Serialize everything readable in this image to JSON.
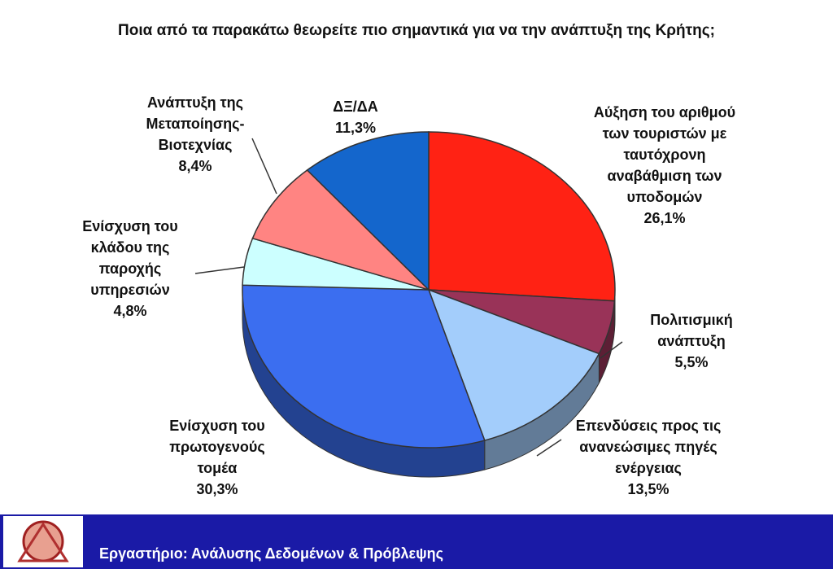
{
  "chart_data": {
    "type": "pie",
    "title": "Ποια από τα παρακάτω θεωρείτε πιο σημαντικά για να την ανάπτυξη της Κρήτης;",
    "categories": [
      "Αύξηση του αριθμού των τουριστών με ταυτόχρονη αναβάθμιση των υποδομών",
      "Πολιτισμική ανάπτυξη",
      "Επενδύσεις προς τις ανανεώσιμες πηγές ενέργειας",
      "Ενίσχυση του πρωτογενούς τομέα",
      "Ενίσχυση του κλάδου της παροχής υπηρεσιών",
      "Ανάπτυξη της Μεταποίησης-Βιοτεχνίας",
      "ΔΞ/ΔΑ"
    ],
    "values": [
      26.1,
      5.5,
      13.5,
      30.3,
      4.8,
      8.4,
      11.3
    ],
    "value_labels": [
      "26,1%",
      "5,5%",
      "13,5%",
      "30,3%",
      "4,8%",
      "8,4%",
      "11,3%"
    ],
    "colors": [
      "#ff2214",
      "#993358",
      "#a3cdfb",
      "#3b6ef0",
      "#ccffff",
      "#ff8482",
      "#1466cc"
    ]
  },
  "footer": "Εργαστήριο: Ανάλυσης Δεδομένων & Πρόβλεψης"
}
